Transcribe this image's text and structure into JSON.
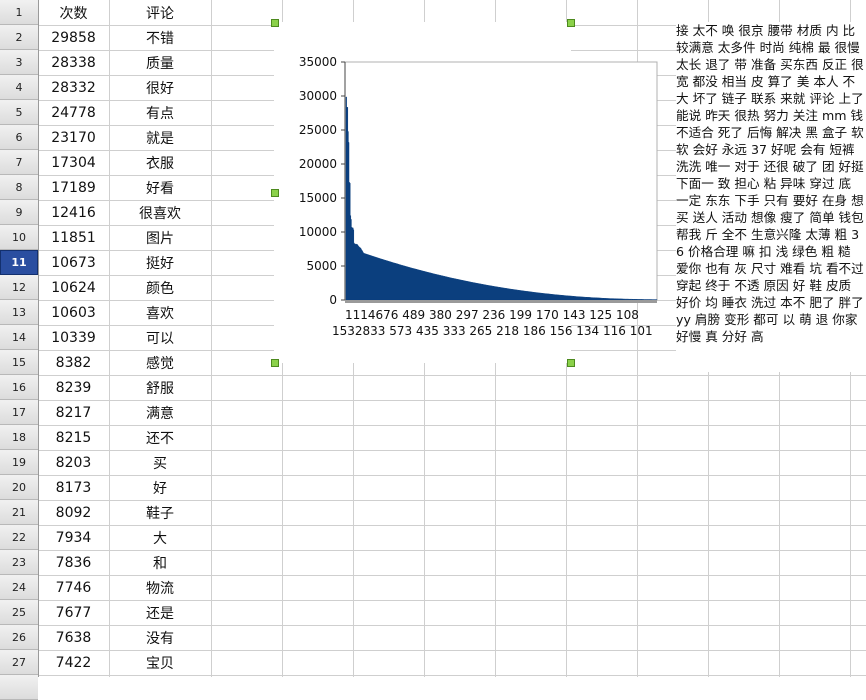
{
  "sheet": {
    "selected_row": 11,
    "header": {
      "col_a": "次数",
      "col_b": "评论"
    },
    "rows": [
      {
        "n": 2,
        "count": "29858",
        "word": "不错"
      },
      {
        "n": 3,
        "count": "28338",
        "word": "质量"
      },
      {
        "n": 4,
        "count": "28332",
        "word": "很好"
      },
      {
        "n": 5,
        "count": "24778",
        "word": "有点"
      },
      {
        "n": 6,
        "count": "23170",
        "word": "就是"
      },
      {
        "n": 7,
        "count": "17304",
        "word": "衣服"
      },
      {
        "n": 8,
        "count": "17189",
        "word": "好看"
      },
      {
        "n": 9,
        "count": "12416",
        "word": "很喜欢"
      },
      {
        "n": 10,
        "count": "11851",
        "word": "图片"
      },
      {
        "n": 11,
        "count": "10673",
        "word": "挺好"
      },
      {
        "n": 12,
        "count": "10624",
        "word": "颜色"
      },
      {
        "n": 13,
        "count": "10603",
        "word": "喜欢"
      },
      {
        "n": 14,
        "count": "10339",
        "word": "可以"
      },
      {
        "n": 15,
        "count": "8382",
        "word": "感觉"
      },
      {
        "n": 16,
        "count": "8239",
        "word": "舒服"
      },
      {
        "n": 17,
        "count": "8217",
        "word": "满意"
      },
      {
        "n": 18,
        "count": "8215",
        "word": "还不"
      },
      {
        "n": 19,
        "count": "8203",
        "word": "买"
      },
      {
        "n": 20,
        "count": "8173",
        "word": "好"
      },
      {
        "n": 21,
        "count": "8092",
        "word": "鞋子"
      },
      {
        "n": 22,
        "count": "7934",
        "word": "大"
      },
      {
        "n": 23,
        "count": "7836",
        "word": "和"
      },
      {
        "n": 24,
        "count": "7746",
        "word": "物流"
      },
      {
        "n": 25,
        "count": "7677",
        "word": "还是"
      },
      {
        "n": 26,
        "count": "7638",
        "word": "没有"
      },
      {
        "n": 27,
        "count": "7422",
        "word": "宝贝"
      }
    ]
  },
  "chart_data": {
    "type": "area",
    "ylim": [
      0,
      35000
    ],
    "yticks": [
      "35000",
      "30000",
      "25000",
      "20000",
      "15000",
      "10000",
      "5000",
      "0"
    ],
    "xtick_row1": "1114676 489 380 297 236 199 170 143 125 108",
    "xtick_row2": "1532833 573 435 333 265 218 186 156 134 116 101",
    "values": [
      29858,
      28338,
      28332,
      24778,
      23170,
      17304,
      17189,
      12416,
      11851,
      10673,
      10624,
      10603,
      10339,
      8382,
      8239,
      8217,
      8215,
      8203,
      8173,
      8092,
      7934,
      7836,
      7746,
      7677,
      7638,
      7422
    ],
    "color": "#0b3f7e"
  },
  "word_text": "接 太不 唤 很京 腰带 材质 内 比较满意 太多件 时尚 纯棉 最 很慢 太长 退了 带 准备 买东西 反正 很宽 都没 相当 皮 算了 美 本人 不大 坏了 链子 联系 来就 评论 上了 能说 昨天 很热 努力 关注 mm 钱 不适合 死了 后悔 解决 黑 盒子 软软 会好 永远 37 好呢 会有 短裤 洗洗 唯一 对于 还很 破了 团 好挺 下面一 致 担心 粘 异味 穿过 底 一定 东东 下手 只有 要好 在身 想买 送人 活动 想像 瘦了 简单 钱包 帮我 斤 全不 生意兴隆 太薄 粗 36 价格合理 嘛 扣 浅 绿色 粗 糙 爱你 也有 灰 尺寸 难看 坑 看不过 穿起 终于 不透 原因 好 鞋 皮质 好价 均 睡衣 洗过 本不 肥了 胖了 yy 肩膀 变形 都可 以 萌 退 你家 好慢 真 分好 高"
}
